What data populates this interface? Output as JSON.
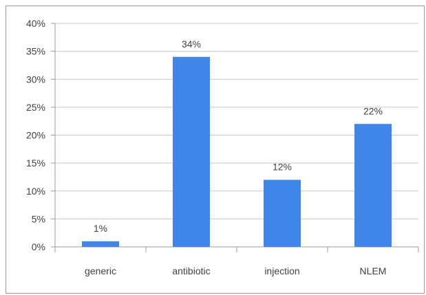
{
  "chart_data": {
    "type": "bar",
    "categories": [
      "generic",
      "antibiotic",
      "injection",
      "NLEM"
    ],
    "values": [
      1,
      34,
      12,
      22
    ],
    "data_labels": [
      "1%",
      "34%",
      "12%",
      "22%"
    ],
    "yticks": [
      "0%",
      "5%",
      "10%",
      "15%",
      "20%",
      "25%",
      "30%",
      "35%",
      "40%"
    ],
    "ylim": [
      0,
      40
    ],
    "grid": true,
    "legend": "none",
    "bar_color": "#3f86e8"
  }
}
